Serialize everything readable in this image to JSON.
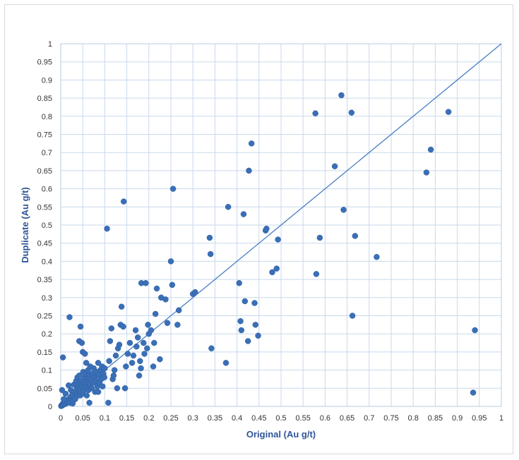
{
  "chart_data": {
    "type": "scatter",
    "title": "",
    "xlabel": "Original (Au g/t)",
    "ylabel": "Duplicate (Au g/t)",
    "xlim": [
      0,
      1
    ],
    "ylim": [
      0,
      1
    ],
    "x_ticks": [
      "0",
      "0.05",
      "0.1",
      "0.15",
      "0.2",
      "0.25",
      "0.3",
      "0.35",
      "0.4",
      "0.45",
      "0.5",
      "0.55",
      "0.6",
      "0.65",
      "0.7",
      "0.75",
      "0.8",
      "0.85",
      "0.9",
      "0.95",
      "1"
    ],
    "y_ticks": [
      "0",
      "0.05",
      "0.1",
      "0.15",
      "0.2",
      "0.25",
      "0.3",
      "0.35",
      "0.4",
      "0.45",
      "0.5",
      "0.55",
      "0.6",
      "0.65",
      "0.7",
      "0.75",
      "0.8",
      "0.85",
      "0.9",
      "0.95",
      "1"
    ],
    "grid": true,
    "reference_line": {
      "from": [
        0,
        0
      ],
      "to": [
        1,
        1
      ]
    },
    "colors": {
      "points": "#3a6fb7",
      "line": "#4a7fc1",
      "axis_title": "#2e5597",
      "grid": "#c8d8ec"
    },
    "points": [
      [
        0.001,
        0.001
      ],
      [
        0.002,
        0.003
      ],
      [
        0.003,
        0.002
      ],
      [
        0.004,
        0.006
      ],
      [
        0.005,
        0.004
      ],
      [
        0.006,
        0.008
      ],
      [
        0.007,
        0.005
      ],
      [
        0.008,
        0.01
      ],
      [
        0.009,
        0.007
      ],
      [
        0.01,
        0.012
      ],
      [
        0.012,
        0.008
      ],
      [
        0.013,
        0.015
      ],
      [
        0.015,
        0.011
      ],
      [
        0.016,
        0.018
      ],
      [
        0.017,
        0.013
      ],
      [
        0.019,
        0.02
      ],
      [
        0.02,
        0.016
      ],
      [
        0.022,
        0.025
      ],
      [
        0.024,
        0.019
      ],
      [
        0.026,
        0.03
      ],
      [
        0.003,
        0.045
      ],
      [
        0.007,
        0.02
      ],
      [
        0.011,
        0.035
      ],
      [
        0.018,
        0.058
      ],
      [
        0.021,
        0.01
      ],
      [
        0.023,
        0.045
      ],
      [
        0.025,
        0.03
      ],
      [
        0.027,
        0.008
      ],
      [
        0.028,
        0.015
      ],
      [
        0.03,
        0.06
      ],
      [
        0.031,
        0.025
      ],
      [
        0.032,
        0.04
      ],
      [
        0.033,
        0.02
      ],
      [
        0.035,
        0.07
      ],
      [
        0.036,
        0.035
      ],
      [
        0.037,
        0.05
      ],
      [
        0.038,
        0.08
      ],
      [
        0.039,
        0.03
      ],
      [
        0.04,
        0.055
      ],
      [
        0.041,
        0.045
      ],
      [
        0.042,
        0.085
      ],
      [
        0.043,
        0.065
      ],
      [
        0.044,
        0.03
      ],
      [
        0.045,
        0.05
      ],
      [
        0.046,
        0.04
      ],
      [
        0.047,
        0.06
      ],
      [
        0.048,
        0.07
      ],
      [
        0.049,
        0.055
      ],
      [
        0.05,
        0.035
      ],
      [
        0.051,
        0.095
      ],
      [
        0.052,
        0.065
      ],
      [
        0.053,
        0.045
      ],
      [
        0.054,
        0.08
      ],
      [
        0.055,
        0.07
      ],
      [
        0.056,
        0.06
      ],
      [
        0.057,
        0.09
      ],
      [
        0.058,
        0.05
      ],
      [
        0.059,
        0.03
      ],
      [
        0.06,
        0.075
      ],
      [
        0.061,
        0.065
      ],
      [
        0.062,
        0.1
      ],
      [
        0.063,
        0.045
      ],
      [
        0.065,
        0.085
      ],
      [
        0.066,
        0.06
      ],
      [
        0.067,
        0.11
      ],
      [
        0.068,
        0.075
      ],
      [
        0.07,
        0.05
      ],
      [
        0.072,
        0.09
      ],
      [
        0.074,
        0.065
      ],
      [
        0.075,
        0.105
      ],
      [
        0.077,
        0.08
      ],
      [
        0.078,
        0.04
      ],
      [
        0.08,
        0.07
      ],
      [
        0.082,
        0.095
      ],
      [
        0.083,
        0.055
      ],
      [
        0.085,
        0.12
      ],
      [
        0.086,
        0.085
      ],
      [
        0.088,
        0.065
      ],
      [
        0.09,
        0.1
      ],
      [
        0.092,
        0.075
      ],
      [
        0.094,
        0.11
      ],
      [
        0.095,
        0.055
      ],
      [
        0.097,
        0.09
      ],
      [
        0.099,
        0.08
      ],
      [
        0.1,
        0.105
      ],
      [
        0.005,
        0.135
      ],
      [
        0.02,
        0.246
      ],
      [
        0.045,
        0.22
      ],
      [
        0.042,
        0.18
      ],
      [
        0.048,
        0.175
      ],
      [
        0.05,
        0.15
      ],
      [
        0.055,
        0.145
      ],
      [
        0.058,
        0.12
      ],
      [
        0.065,
        0.01
      ],
      [
        0.085,
        0.04
      ],
      [
        0.105,
        0.49
      ],
      [
        0.108,
        0.01
      ],
      [
        0.11,
        0.125
      ],
      [
        0.112,
        0.18
      ],
      [
        0.115,
        0.215
      ],
      [
        0.118,
        0.075
      ],
      [
        0.12,
        0.085
      ],
      [
        0.122,
        0.1
      ],
      [
        0.125,
        0.14
      ],
      [
        0.128,
        0.05
      ],
      [
        0.13,
        0.16
      ],
      [
        0.133,
        0.17
      ],
      [
        0.136,
        0.225
      ],
      [
        0.138,
        0.275
      ],
      [
        0.142,
        0.22
      ],
      [
        0.143,
        0.565
      ],
      [
        0.146,
        0.05
      ],
      [
        0.148,
        0.11
      ],
      [
        0.152,
        0.145
      ],
      [
        0.157,
        0.175
      ],
      [
        0.162,
        0.12
      ],
      [
        0.165,
        0.14
      ],
      [
        0.17,
        0.21
      ],
      [
        0.172,
        0.165
      ],
      [
        0.175,
        0.19
      ],
      [
        0.178,
        0.085
      ],
      [
        0.18,
        0.125
      ],
      [
        0.182,
        0.105
      ],
      [
        0.183,
        0.34
      ],
      [
        0.188,
        0.175
      ],
      [
        0.19,
        0.145
      ],
      [
        0.193,
        0.34
      ],
      [
        0.196,
        0.16
      ],
      [
        0.198,
        0.225
      ],
      [
        0.2,
        0.2
      ],
      [
        0.205,
        0.21
      ],
      [
        0.21,
        0.11
      ],
      [
        0.212,
        0.175
      ],
      [
        0.215,
        0.255
      ],
      [
        0.218,
        0.325
      ],
      [
        0.225,
        0.13
      ],
      [
        0.228,
        0.3
      ],
      [
        0.238,
        0.295
      ],
      [
        0.242,
        0.23
      ],
      [
        0.25,
        0.4
      ],
      [
        0.253,
        0.335
      ],
      [
        0.255,
        0.6
      ],
      [
        0.265,
        0.225
      ],
      [
        0.268,
        0.265
      ],
      [
        0.3,
        0.31
      ],
      [
        0.305,
        0.315
      ],
      [
        0.338,
        0.465
      ],
      [
        0.34,
        0.42
      ],
      [
        0.342,
        0.16
      ],
      [
        0.375,
        0.12
      ],
      [
        0.38,
        0.55
      ],
      [
        0.405,
        0.34
      ],
      [
        0.408,
        0.235
      ],
      [
        0.41,
        0.21
      ],
      [
        0.415,
        0.53
      ],
      [
        0.418,
        0.29
      ],
      [
        0.425,
        0.18
      ],
      [
        0.427,
        0.65
      ],
      [
        0.433,
        0.725
      ],
      [
        0.44,
        0.285
      ],
      [
        0.442,
        0.225
      ],
      [
        0.448,
        0.195
      ],
      [
        0.465,
        0.485
      ],
      [
        0.467,
        0.49
      ],
      [
        0.48,
        0.37
      ],
      [
        0.49,
        0.38
      ],
      [
        0.493,
        0.46
      ],
      [
        0.578,
        0.808
      ],
      [
        0.58,
        0.365
      ],
      [
        0.588,
        0.465
      ],
      [
        0.622,
        0.662
      ],
      [
        0.637,
        0.858
      ],
      [
        0.642,
        0.542
      ],
      [
        0.66,
        0.81
      ],
      [
        0.662,
        0.25
      ],
      [
        0.668,
        0.47
      ],
      [
        0.717,
        0.412
      ],
      [
        0.83,
        0.645
      ],
      [
        0.84,
        0.708
      ],
      [
        0.88,
        0.812
      ],
      [
        0.936,
        0.038
      ],
      [
        0.94,
        0.21
      ]
    ]
  }
}
